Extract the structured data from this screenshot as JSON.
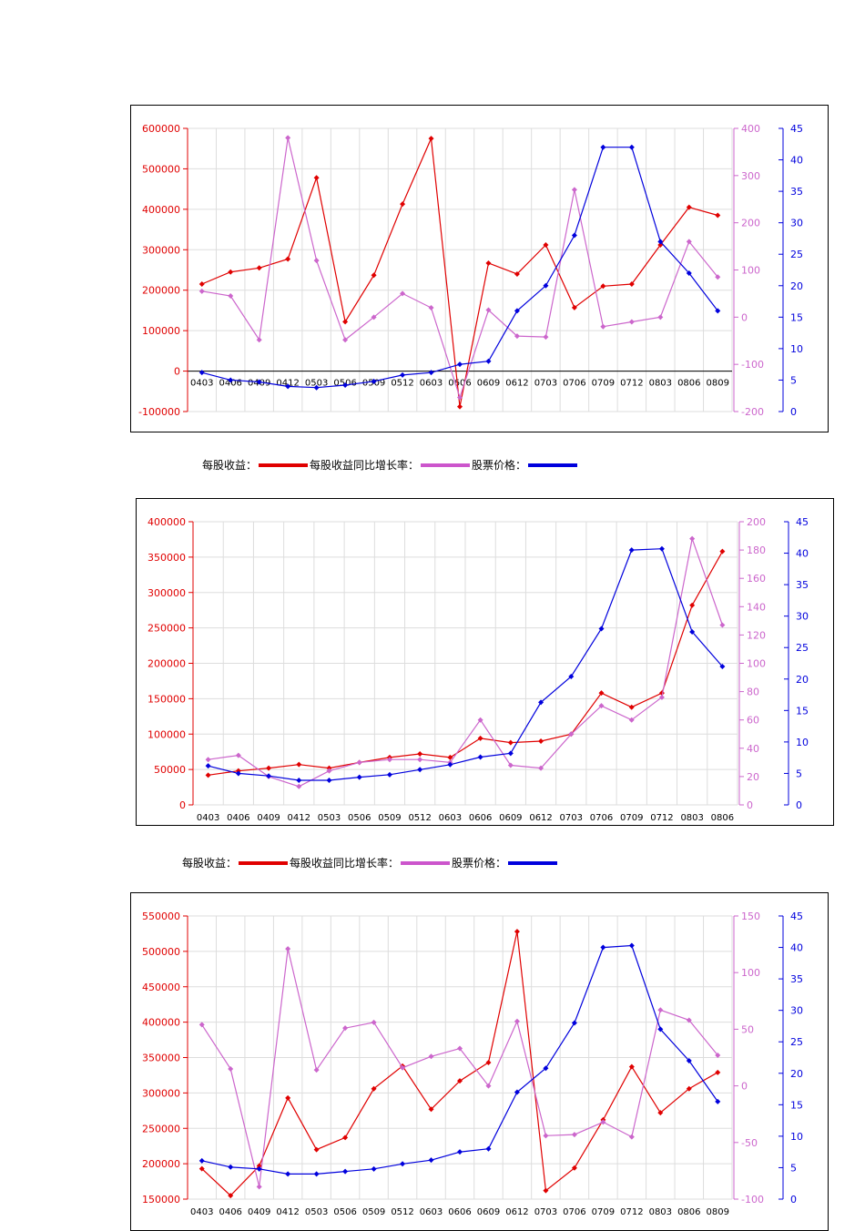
{
  "colors": {
    "eps": "#e00000",
    "growth": "#cc66cc",
    "price": "#0000dd",
    "grid": "#dddddd"
  },
  "chart_data": [
    {
      "type": "line",
      "categories": [
        "0403",
        "0406",
        "0409",
        "0412",
        "0503",
        "0506",
        "0509",
        "0512",
        "0603",
        "0606",
        "0609",
        "0612",
        "0703",
        "0706",
        "0709",
        "0712",
        "0803",
        "0806",
        "0809"
      ],
      "left_axis": {
        "min": -100000,
        "max": 600000,
        "step": 100000,
        "ticks": [
          "-100000",
          "0",
          "100000",
          "200000",
          "300000",
          "400000",
          "500000",
          "600000"
        ]
      },
      "right1_axis": {
        "min": -200,
        "max": 400,
        "step": 100,
        "ticks": [
          "-200",
          "-100",
          "0",
          "100",
          "200",
          "300",
          "400"
        ]
      },
      "right2_axis": {
        "min": 0,
        "max": 45,
        "step": 5,
        "ticks": [
          "0",
          "5",
          "10",
          "15",
          "20",
          "25",
          "30",
          "35",
          "40",
          "45"
        ]
      },
      "zero_line": true,
      "series": [
        {
          "name": "每股收益：",
          "axis": "left",
          "color": "eps",
          "values": [
            215000,
            245000,
            255000,
            277000,
            478000,
            122000,
            237000,
            413000,
            575000,
            -88000,
            267000,
            240000,
            312000,
            157000,
            210000,
            215000,
            312000,
            405000,
            385000
          ]
        },
        {
          "name": "每股收益同比增长率：",
          "axis": "right1",
          "color": "growth",
          "values": [
            55,
            45,
            -48,
            380,
            120,
            -48,
            0,
            50,
            20,
            -170,
            15,
            -40,
            -42,
            270,
            -20,
            -10,
            0,
            160,
            85
          ]
        },
        {
          "name": "股票价格：",
          "axis": "right2",
          "color": "price",
          "values": [
            6.2,
            5.0,
            4.7,
            4.0,
            3.8,
            4.2,
            4.8,
            5.8,
            6.2,
            7.5,
            8.0,
            16.0,
            20.0,
            28.0,
            42.0,
            42.0,
            27.0,
            22.0,
            16.0
          ]
        }
      ]
    },
    {
      "type": "line",
      "categories": [
        "0403",
        "0406",
        "0409",
        "0412",
        "0503",
        "0506",
        "0509",
        "0512",
        "0603",
        "0606",
        "0609",
        "0612",
        "0703",
        "0706",
        "0709",
        "0712",
        "0803",
        "0806"
      ],
      "left_axis": {
        "min": 0,
        "max": 400000,
        "step": 50000,
        "ticks": [
          "0",
          "50000",
          "100000",
          "150000",
          "200000",
          "250000",
          "300000",
          "350000",
          "400000"
        ]
      },
      "right1_axis": {
        "min": 0,
        "max": 200,
        "step": 20,
        "ticks": [
          "0",
          "20",
          "40",
          "60",
          "80",
          "100",
          "120",
          "140",
          "160",
          "180",
          "200"
        ]
      },
      "right2_axis": {
        "min": 0,
        "max": 45,
        "step": 5,
        "ticks": [
          "0",
          "5",
          "10",
          "15",
          "20",
          "25",
          "30",
          "35",
          "40",
          "45"
        ]
      },
      "zero_line": false,
      "series": [
        {
          "name": "每股收益：",
          "axis": "left",
          "color": "eps",
          "values": [
            42000,
            48000,
            52000,
            57000,
            52000,
            60000,
            67000,
            72000,
            67000,
            94000,
            88000,
            90000,
            100000,
            158000,
            138000,
            158000,
            282000,
            358000
          ]
        },
        {
          "name": "每股收益同比增长率：",
          "axis": "right1",
          "color": "growth",
          "values": [
            32,
            35,
            20,
            13,
            24,
            30,
            32,
            32,
            30,
            60,
            28,
            26,
            50,
            70,
            60,
            76,
            188,
            127
          ]
        },
        {
          "name": "股票价格：",
          "axis": "right2",
          "color": "price",
          "values": [
            6.2,
            5.0,
            4.6,
            3.9,
            3.9,
            4.4,
            4.8,
            5.6,
            6.4,
            7.6,
            8.2,
            16.3,
            20.4,
            28.0,
            40.5,
            40.7,
            27.5,
            22.0
          ]
        }
      ]
    },
    {
      "type": "line",
      "categories": [
        "0403",
        "0406",
        "0409",
        "0412",
        "0503",
        "0506",
        "0509",
        "0512",
        "0603",
        "0606",
        "0609",
        "0612",
        "0703",
        "0706",
        "0709",
        "0712",
        "0803",
        "0806",
        "0809"
      ],
      "left_axis": {
        "min": 150000,
        "max": 550000,
        "step": 50000,
        "ticks": [
          "150000",
          "200000",
          "250000",
          "300000",
          "350000",
          "400000",
          "450000",
          "500000",
          "550000"
        ]
      },
      "right1_axis": {
        "min": -100,
        "max": 150,
        "step": 50,
        "ticks": [
          "-100",
          "-50",
          "0",
          "50",
          "100",
          "150"
        ]
      },
      "right2_axis": {
        "min": 0,
        "max": 45,
        "step": 5,
        "ticks": [
          "0",
          "5",
          "10",
          "15",
          "20",
          "25",
          "30",
          "35",
          "40",
          "45"
        ]
      },
      "zero_line": false,
      "series": [
        {
          "name": "每股收益：",
          "axis": "left",
          "color": "eps",
          "values": [
            193000,
            155000,
            197000,
            293000,
            220000,
            237000,
            306000,
            338000,
            277000,
            317000,
            343000,
            528000,
            162000,
            194000,
            262000,
            337000,
            272000,
            306000,
            329000
          ]
        },
        {
          "name": "每股收益同比增长率：",
          "axis": "right1",
          "color": "growth",
          "values": [
            54,
            15,
            -89,
            121,
            14,
            51,
            56,
            16,
            26,
            33,
            0,
            57,
            -44,
            -43,
            -32,
            -45,
            67,
            58,
            27
          ]
        },
        {
          "name": "股票价格：",
          "axis": "right2",
          "color": "price",
          "values": [
            6.1,
            5.1,
            4.8,
            4.0,
            4.0,
            4.4,
            4.8,
            5.6,
            6.2,
            7.5,
            8.0,
            17.0,
            20.8,
            28.0,
            40.0,
            40.3,
            27.0,
            22.0,
            15.5
          ]
        }
      ]
    }
  ],
  "legend": {
    "eps_label": "每股收益：",
    "growth_label": "每股收益同比增长率：",
    "price_label": "股票价格："
  }
}
